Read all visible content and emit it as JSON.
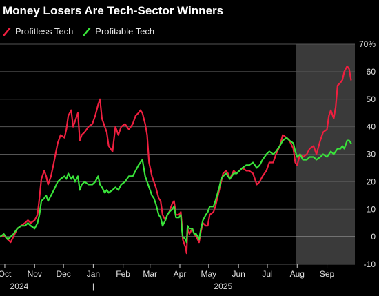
{
  "title": "Money Losers Are Tech-Sector Winners",
  "colors": {
    "background": "#000000",
    "grid": "#555555",
    "zero_line": "#cfcfcf",
    "highlight": "#3a3a3a",
    "profitless": "#ee1f3f",
    "profitable": "#39e43a"
  },
  "chart_data": {
    "type": "line",
    "title": "Money Losers Are Tech-Sector Winners",
    "ylabel": "",
    "y_unit": "%",
    "ylim": [
      -10,
      70
    ],
    "yticks": [
      -10,
      0,
      10,
      20,
      30,
      40,
      50,
      60,
      70
    ],
    "ytick_labels": [
      "-10",
      "0",
      "10",
      "20",
      "30",
      "40",
      "50",
      "60",
      "70%"
    ],
    "xlim": [
      "2024-09-26",
      "2025-09-30"
    ],
    "xticks": [
      {
        "date": "2024-10-01",
        "label": "Oct"
      },
      {
        "date": "2024-11-01",
        "label": "Nov"
      },
      {
        "date": "2024-12-01",
        "label": "Dec"
      },
      {
        "date": "2025-01-01",
        "label": "Jan"
      },
      {
        "date": "2025-02-01",
        "label": "Feb"
      },
      {
        "date": "2025-03-01",
        "label": "Mar"
      },
      {
        "date": "2025-04-01",
        "label": "Apr"
      },
      {
        "date": "2025-05-01",
        "label": "May"
      },
      {
        "date": "2025-06-01",
        "label": "Jun"
      },
      {
        "date": "2025-07-01",
        "label": "Jul"
      },
      {
        "date": "2025-08-01",
        "label": "Aug"
      },
      {
        "date": "2025-09-01",
        "label": "Sep"
      }
    ],
    "year_labels": [
      {
        "date": "2024-10-16",
        "label": "2024"
      },
      {
        "date": "2025-05-16",
        "label": "2025"
      }
    ],
    "year_divider": "2025-01-01",
    "year_divider_label": "|",
    "highlight_range": [
      "2025-07-31",
      "2025-09-30"
    ],
    "grid": true,
    "legend_position": "top-left",
    "series": [
      {
        "name": "Profitless Tech",
        "color": "#ee1f3f",
        "points": [
          [
            "2024-09-26",
            0
          ],
          [
            "2024-09-30",
            0.5
          ],
          [
            "2024-10-04",
            -1
          ],
          [
            "2024-10-07",
            -2
          ],
          [
            "2024-10-10",
            0
          ],
          [
            "2024-10-14",
            3
          ],
          [
            "2024-10-18",
            4
          ],
          [
            "2024-10-22",
            5
          ],
          [
            "2024-10-25",
            6
          ],
          [
            "2024-10-28",
            5
          ],
          [
            "2024-11-01",
            6
          ],
          [
            "2024-11-04",
            8
          ],
          [
            "2024-11-06",
            14
          ],
          [
            "2024-11-08",
            21
          ],
          [
            "2024-11-11",
            24
          ],
          [
            "2024-11-13",
            22
          ],
          [
            "2024-11-15",
            19
          ],
          [
            "2024-11-18",
            22
          ],
          [
            "2024-11-21",
            27
          ],
          [
            "2024-11-25",
            34
          ],
          [
            "2024-11-28",
            37
          ],
          [
            "2024-12-02",
            36
          ],
          [
            "2024-12-04",
            39
          ],
          [
            "2024-12-06",
            44
          ],
          [
            "2024-12-09",
            46
          ],
          [
            "2024-12-11",
            40
          ],
          [
            "2024-12-13",
            42
          ],
          [
            "2024-12-16",
            45
          ],
          [
            "2024-12-18",
            35
          ],
          [
            "2024-12-20",
            37
          ],
          [
            "2024-12-23",
            38
          ],
          [
            "2024-12-27",
            40
          ],
          [
            "2024-12-31",
            41
          ],
          [
            "2025-01-03",
            44
          ],
          [
            "2025-01-06",
            48
          ],
          [
            "2025-01-08",
            50
          ],
          [
            "2025-01-10",
            43
          ],
          [
            "2025-01-13",
            40
          ],
          [
            "2025-01-15",
            38
          ],
          [
            "2025-01-17",
            33
          ],
          [
            "2025-01-21",
            31
          ],
          [
            "2025-01-24",
            40
          ],
          [
            "2025-01-27",
            37
          ],
          [
            "2025-01-30",
            40
          ],
          [
            "2025-02-03",
            41
          ],
          [
            "2025-02-05",
            40
          ],
          [
            "2025-02-07",
            39
          ],
          [
            "2025-02-11",
            41
          ],
          [
            "2025-02-14",
            44
          ],
          [
            "2025-02-17",
            45
          ],
          [
            "2025-02-19",
            46
          ],
          [
            "2025-02-21",
            45
          ],
          [
            "2025-02-24",
            41
          ],
          [
            "2025-02-26",
            37
          ],
          [
            "2025-02-28",
            27
          ],
          [
            "2025-03-03",
            22
          ],
          [
            "2025-03-05",
            20
          ],
          [
            "2025-03-07",
            18
          ],
          [
            "2025-03-10",
            14
          ],
          [
            "2025-03-12",
            13
          ],
          [
            "2025-03-14",
            8
          ],
          [
            "2025-03-17",
            6
          ],
          [
            "2025-03-19",
            8
          ],
          [
            "2025-03-21",
            9
          ],
          [
            "2025-03-24",
            12
          ],
          [
            "2025-03-26",
            13
          ],
          [
            "2025-03-28",
            8
          ],
          [
            "2025-03-31",
            8
          ],
          [
            "2025-04-02",
            9
          ],
          [
            "2025-04-03",
            5
          ],
          [
            "2025-04-04",
            -1
          ],
          [
            "2025-04-07",
            -4
          ],
          [
            "2025-04-08",
            -6
          ],
          [
            "2025-04-09",
            3
          ],
          [
            "2025-04-11",
            1
          ],
          [
            "2025-04-14",
            3
          ],
          [
            "2025-04-16",
            1
          ],
          [
            "2025-04-18",
            0
          ],
          [
            "2025-04-21",
            -2
          ],
          [
            "2025-04-23",
            2
          ],
          [
            "2025-04-25",
            5
          ],
          [
            "2025-04-28",
            4
          ],
          [
            "2025-04-30",
            4
          ],
          [
            "2025-05-02",
            8
          ],
          [
            "2025-05-06",
            9
          ],
          [
            "2025-05-08",
            11
          ],
          [
            "2025-05-12",
            17
          ],
          [
            "2025-05-14",
            20
          ],
          [
            "2025-05-16",
            23
          ],
          [
            "2025-05-19",
            24
          ],
          [
            "2025-05-21",
            23
          ],
          [
            "2025-05-23",
            21
          ],
          [
            "2025-05-27",
            24
          ],
          [
            "2025-05-30",
            23
          ],
          [
            "2025-06-02",
            24
          ],
          [
            "2025-06-05",
            25
          ],
          [
            "2025-06-09",
            24
          ],
          [
            "2025-06-12",
            24
          ],
          [
            "2025-06-16",
            23
          ],
          [
            "2025-06-18",
            21
          ],
          [
            "2025-06-20",
            19
          ],
          [
            "2025-06-23",
            20
          ],
          [
            "2025-06-26",
            22
          ],
          [
            "2025-06-30",
            24
          ],
          [
            "2025-07-03",
            27
          ],
          [
            "2025-07-07",
            27
          ],
          [
            "2025-07-10",
            30
          ],
          [
            "2025-07-14",
            33
          ],
          [
            "2025-07-17",
            37
          ],
          [
            "2025-07-21",
            36
          ],
          [
            "2025-07-24",
            35
          ],
          [
            "2025-07-28",
            32
          ],
          [
            "2025-07-30",
            27
          ],
          [
            "2025-08-01",
            26
          ],
          [
            "2025-08-04",
            30
          ],
          [
            "2025-08-07",
            29
          ],
          [
            "2025-08-11",
            30
          ],
          [
            "2025-08-14",
            32
          ],
          [
            "2025-08-18",
            33
          ],
          [
            "2025-08-21",
            30
          ],
          [
            "2025-08-25",
            35
          ],
          [
            "2025-08-28",
            38
          ],
          [
            "2025-09-01",
            39
          ],
          [
            "2025-09-03",
            44
          ],
          [
            "2025-09-05",
            46
          ],
          [
            "2025-09-08",
            43
          ],
          [
            "2025-09-10",
            47
          ],
          [
            "2025-09-12",
            55
          ],
          [
            "2025-09-15",
            56
          ],
          [
            "2025-09-17",
            57
          ],
          [
            "2025-09-19",
            60
          ],
          [
            "2025-09-22",
            62
          ],
          [
            "2025-09-24",
            61
          ],
          [
            "2025-09-26",
            57
          ]
        ]
      },
      {
        "name": "Profitable Tech",
        "color": "#39e43a",
        "points": [
          [
            "2024-09-26",
            0
          ],
          [
            "2024-09-30",
            1
          ],
          [
            "2024-10-04",
            -1
          ],
          [
            "2024-10-07",
            0
          ],
          [
            "2024-10-10",
            1
          ],
          [
            "2024-10-14",
            3
          ],
          [
            "2024-10-18",
            4
          ],
          [
            "2024-10-22",
            4
          ],
          [
            "2024-10-25",
            5
          ],
          [
            "2024-10-28",
            4
          ],
          [
            "2024-11-01",
            3
          ],
          [
            "2024-11-04",
            5
          ],
          [
            "2024-11-06",
            8
          ],
          [
            "2024-11-08",
            13
          ],
          [
            "2024-11-11",
            14
          ],
          [
            "2024-11-13",
            15
          ],
          [
            "2024-11-15",
            13
          ],
          [
            "2024-11-18",
            15
          ],
          [
            "2024-11-21",
            17
          ],
          [
            "2024-11-25",
            20
          ],
          [
            "2024-11-28",
            21
          ],
          [
            "2024-12-02",
            22
          ],
          [
            "2024-12-04",
            21
          ],
          [
            "2024-12-06",
            23
          ],
          [
            "2024-12-09",
            21
          ],
          [
            "2024-12-11",
            22
          ],
          [
            "2024-12-13",
            20
          ],
          [
            "2024-12-16",
            22
          ],
          [
            "2024-12-18",
            17
          ],
          [
            "2024-12-20",
            19
          ],
          [
            "2024-12-23",
            20
          ],
          [
            "2024-12-27",
            19
          ],
          [
            "2024-12-31",
            19
          ],
          [
            "2025-01-03",
            20
          ],
          [
            "2025-01-06",
            22
          ],
          [
            "2025-01-08",
            19
          ],
          [
            "2025-01-10",
            18
          ],
          [
            "2025-01-13",
            16
          ],
          [
            "2025-01-15",
            17
          ],
          [
            "2025-01-17",
            16
          ],
          [
            "2025-01-21",
            17
          ],
          [
            "2025-01-24",
            18
          ],
          [
            "2025-01-27",
            17
          ],
          [
            "2025-01-30",
            19
          ],
          [
            "2025-02-03",
            20
          ],
          [
            "2025-02-05",
            21
          ],
          [
            "2025-02-07",
            22
          ],
          [
            "2025-02-11",
            22
          ],
          [
            "2025-02-14",
            24
          ],
          [
            "2025-02-17",
            26
          ],
          [
            "2025-02-19",
            27
          ],
          [
            "2025-02-21",
            28
          ],
          [
            "2025-02-24",
            22
          ],
          [
            "2025-02-26",
            20
          ],
          [
            "2025-02-28",
            18
          ],
          [
            "2025-03-03",
            15
          ],
          [
            "2025-03-05",
            14
          ],
          [
            "2025-03-07",
            12
          ],
          [
            "2025-03-10",
            8
          ],
          [
            "2025-03-12",
            7
          ],
          [
            "2025-03-14",
            4
          ],
          [
            "2025-03-17",
            6
          ],
          [
            "2025-03-19",
            8
          ],
          [
            "2025-03-21",
            9
          ],
          [
            "2025-03-24",
            10
          ],
          [
            "2025-03-26",
            11
          ],
          [
            "2025-03-28",
            7
          ],
          [
            "2025-03-31",
            7
          ],
          [
            "2025-04-02",
            8
          ],
          [
            "2025-04-03",
            3
          ],
          [
            "2025-04-04",
            0
          ],
          [
            "2025-04-07",
            -1
          ],
          [
            "2025-04-08",
            -2
          ],
          [
            "2025-04-09",
            4
          ],
          [
            "2025-04-11",
            3
          ],
          [
            "2025-04-14",
            3
          ],
          [
            "2025-04-16",
            1
          ],
          [
            "2025-04-18",
            1
          ],
          [
            "2025-04-21",
            -1
          ],
          [
            "2025-04-23",
            3
          ],
          [
            "2025-04-25",
            6
          ],
          [
            "2025-04-28",
            8
          ],
          [
            "2025-04-30",
            9
          ],
          [
            "2025-05-02",
            11
          ],
          [
            "2025-05-06",
            11
          ],
          [
            "2025-05-08",
            13
          ],
          [
            "2025-05-12",
            18
          ],
          [
            "2025-05-14",
            21
          ],
          [
            "2025-05-16",
            22
          ],
          [
            "2025-05-19",
            23
          ],
          [
            "2025-05-21",
            22
          ],
          [
            "2025-05-23",
            21
          ],
          [
            "2025-05-27",
            23
          ],
          [
            "2025-05-30",
            23
          ],
          [
            "2025-06-02",
            24
          ],
          [
            "2025-06-05",
            25
          ],
          [
            "2025-06-09",
            26
          ],
          [
            "2025-06-12",
            26
          ],
          [
            "2025-06-16",
            27
          ],
          [
            "2025-06-18",
            26
          ],
          [
            "2025-06-20",
            25
          ],
          [
            "2025-06-23",
            26
          ],
          [
            "2025-06-26",
            28
          ],
          [
            "2025-06-30",
            30
          ],
          [
            "2025-07-03",
            31
          ],
          [
            "2025-07-07",
            30
          ],
          [
            "2025-07-10",
            31
          ],
          [
            "2025-07-14",
            33
          ],
          [
            "2025-07-17",
            35
          ],
          [
            "2025-07-21",
            36
          ],
          [
            "2025-07-24",
            35
          ],
          [
            "2025-07-28",
            34
          ],
          [
            "2025-07-30",
            31
          ],
          [
            "2025-08-01",
            29
          ],
          [
            "2025-08-04",
            30
          ],
          [
            "2025-08-07",
            28
          ],
          [
            "2025-08-11",
            28
          ],
          [
            "2025-08-14",
            29
          ],
          [
            "2025-08-18",
            29
          ],
          [
            "2025-08-21",
            28
          ],
          [
            "2025-08-25",
            29
          ],
          [
            "2025-08-28",
            30
          ],
          [
            "2025-09-01",
            29
          ],
          [
            "2025-09-03",
            30
          ],
          [
            "2025-09-05",
            31
          ],
          [
            "2025-09-08",
            30
          ],
          [
            "2025-09-10",
            31
          ],
          [
            "2025-09-12",
            32
          ],
          [
            "2025-09-15",
            32
          ],
          [
            "2025-09-17",
            33
          ],
          [
            "2025-09-19",
            32
          ],
          [
            "2025-09-22",
            35
          ],
          [
            "2025-09-24",
            35
          ],
          [
            "2025-09-26",
            34
          ]
        ]
      }
    ]
  }
}
